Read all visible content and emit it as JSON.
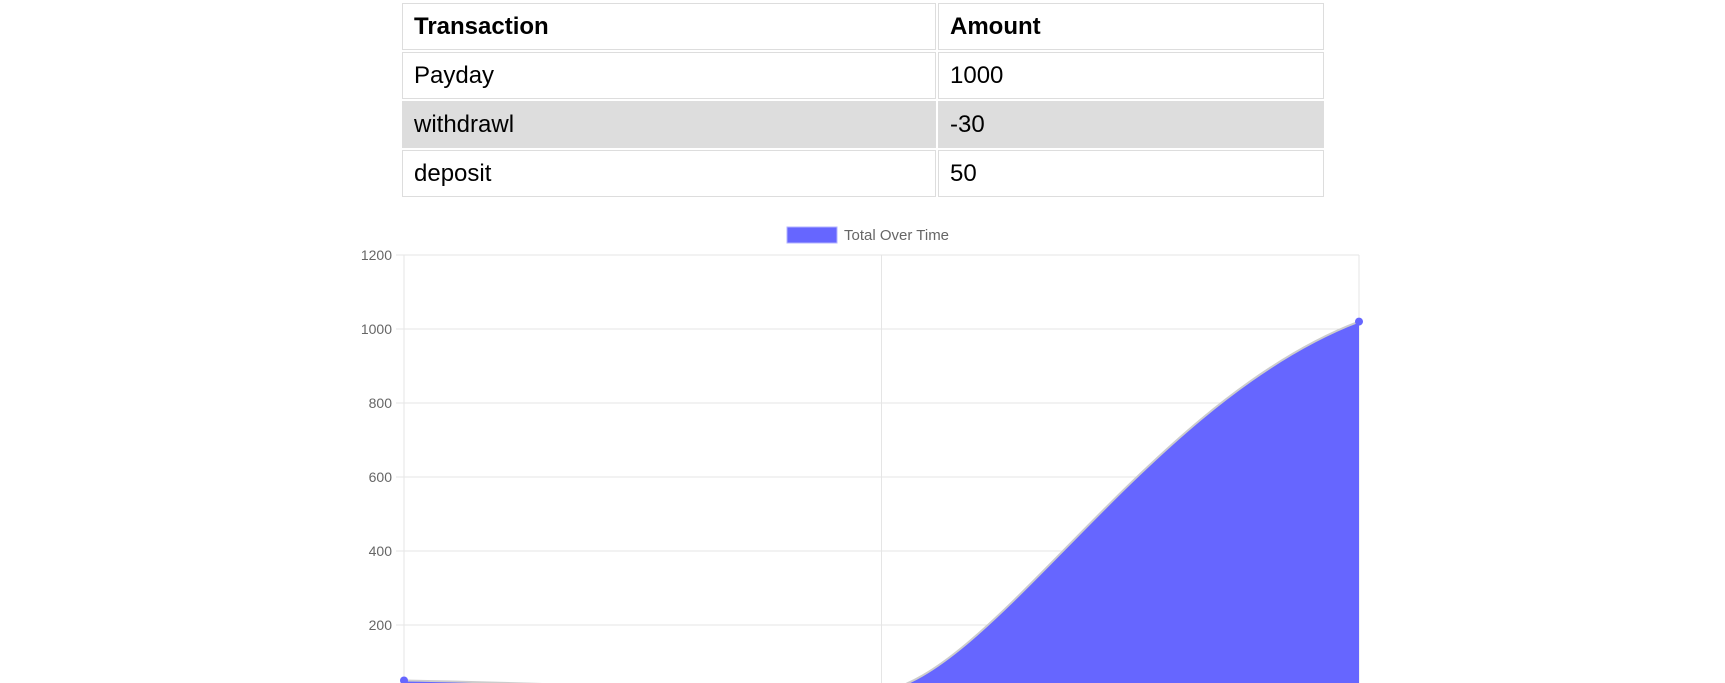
{
  "table": {
    "headers": [
      "Transaction",
      "Amount"
    ],
    "rows": [
      [
        "Payday",
        "1000"
      ],
      [
        "withdrawl",
        "-30"
      ],
      [
        "deposit",
        "50"
      ]
    ]
  },
  "chart_data": {
    "type": "area",
    "legend": [
      "Total Over Time"
    ],
    "legend_position": "top",
    "grid": true,
    "y_ticks": [
      "1200",
      "1000",
      "800",
      "600",
      "400",
      "200"
    ],
    "ylim": [
      0,
      1200
    ],
    "series": [
      {
        "name": "Total Over Time",
        "values": [
          50,
          20,
          1020
        ]
      }
    ],
    "colors": {
      "fill": "#6666ff",
      "point": "#6666ff",
      "grid": "#e5e5e5",
      "tick_text": "#666666"
    }
  }
}
